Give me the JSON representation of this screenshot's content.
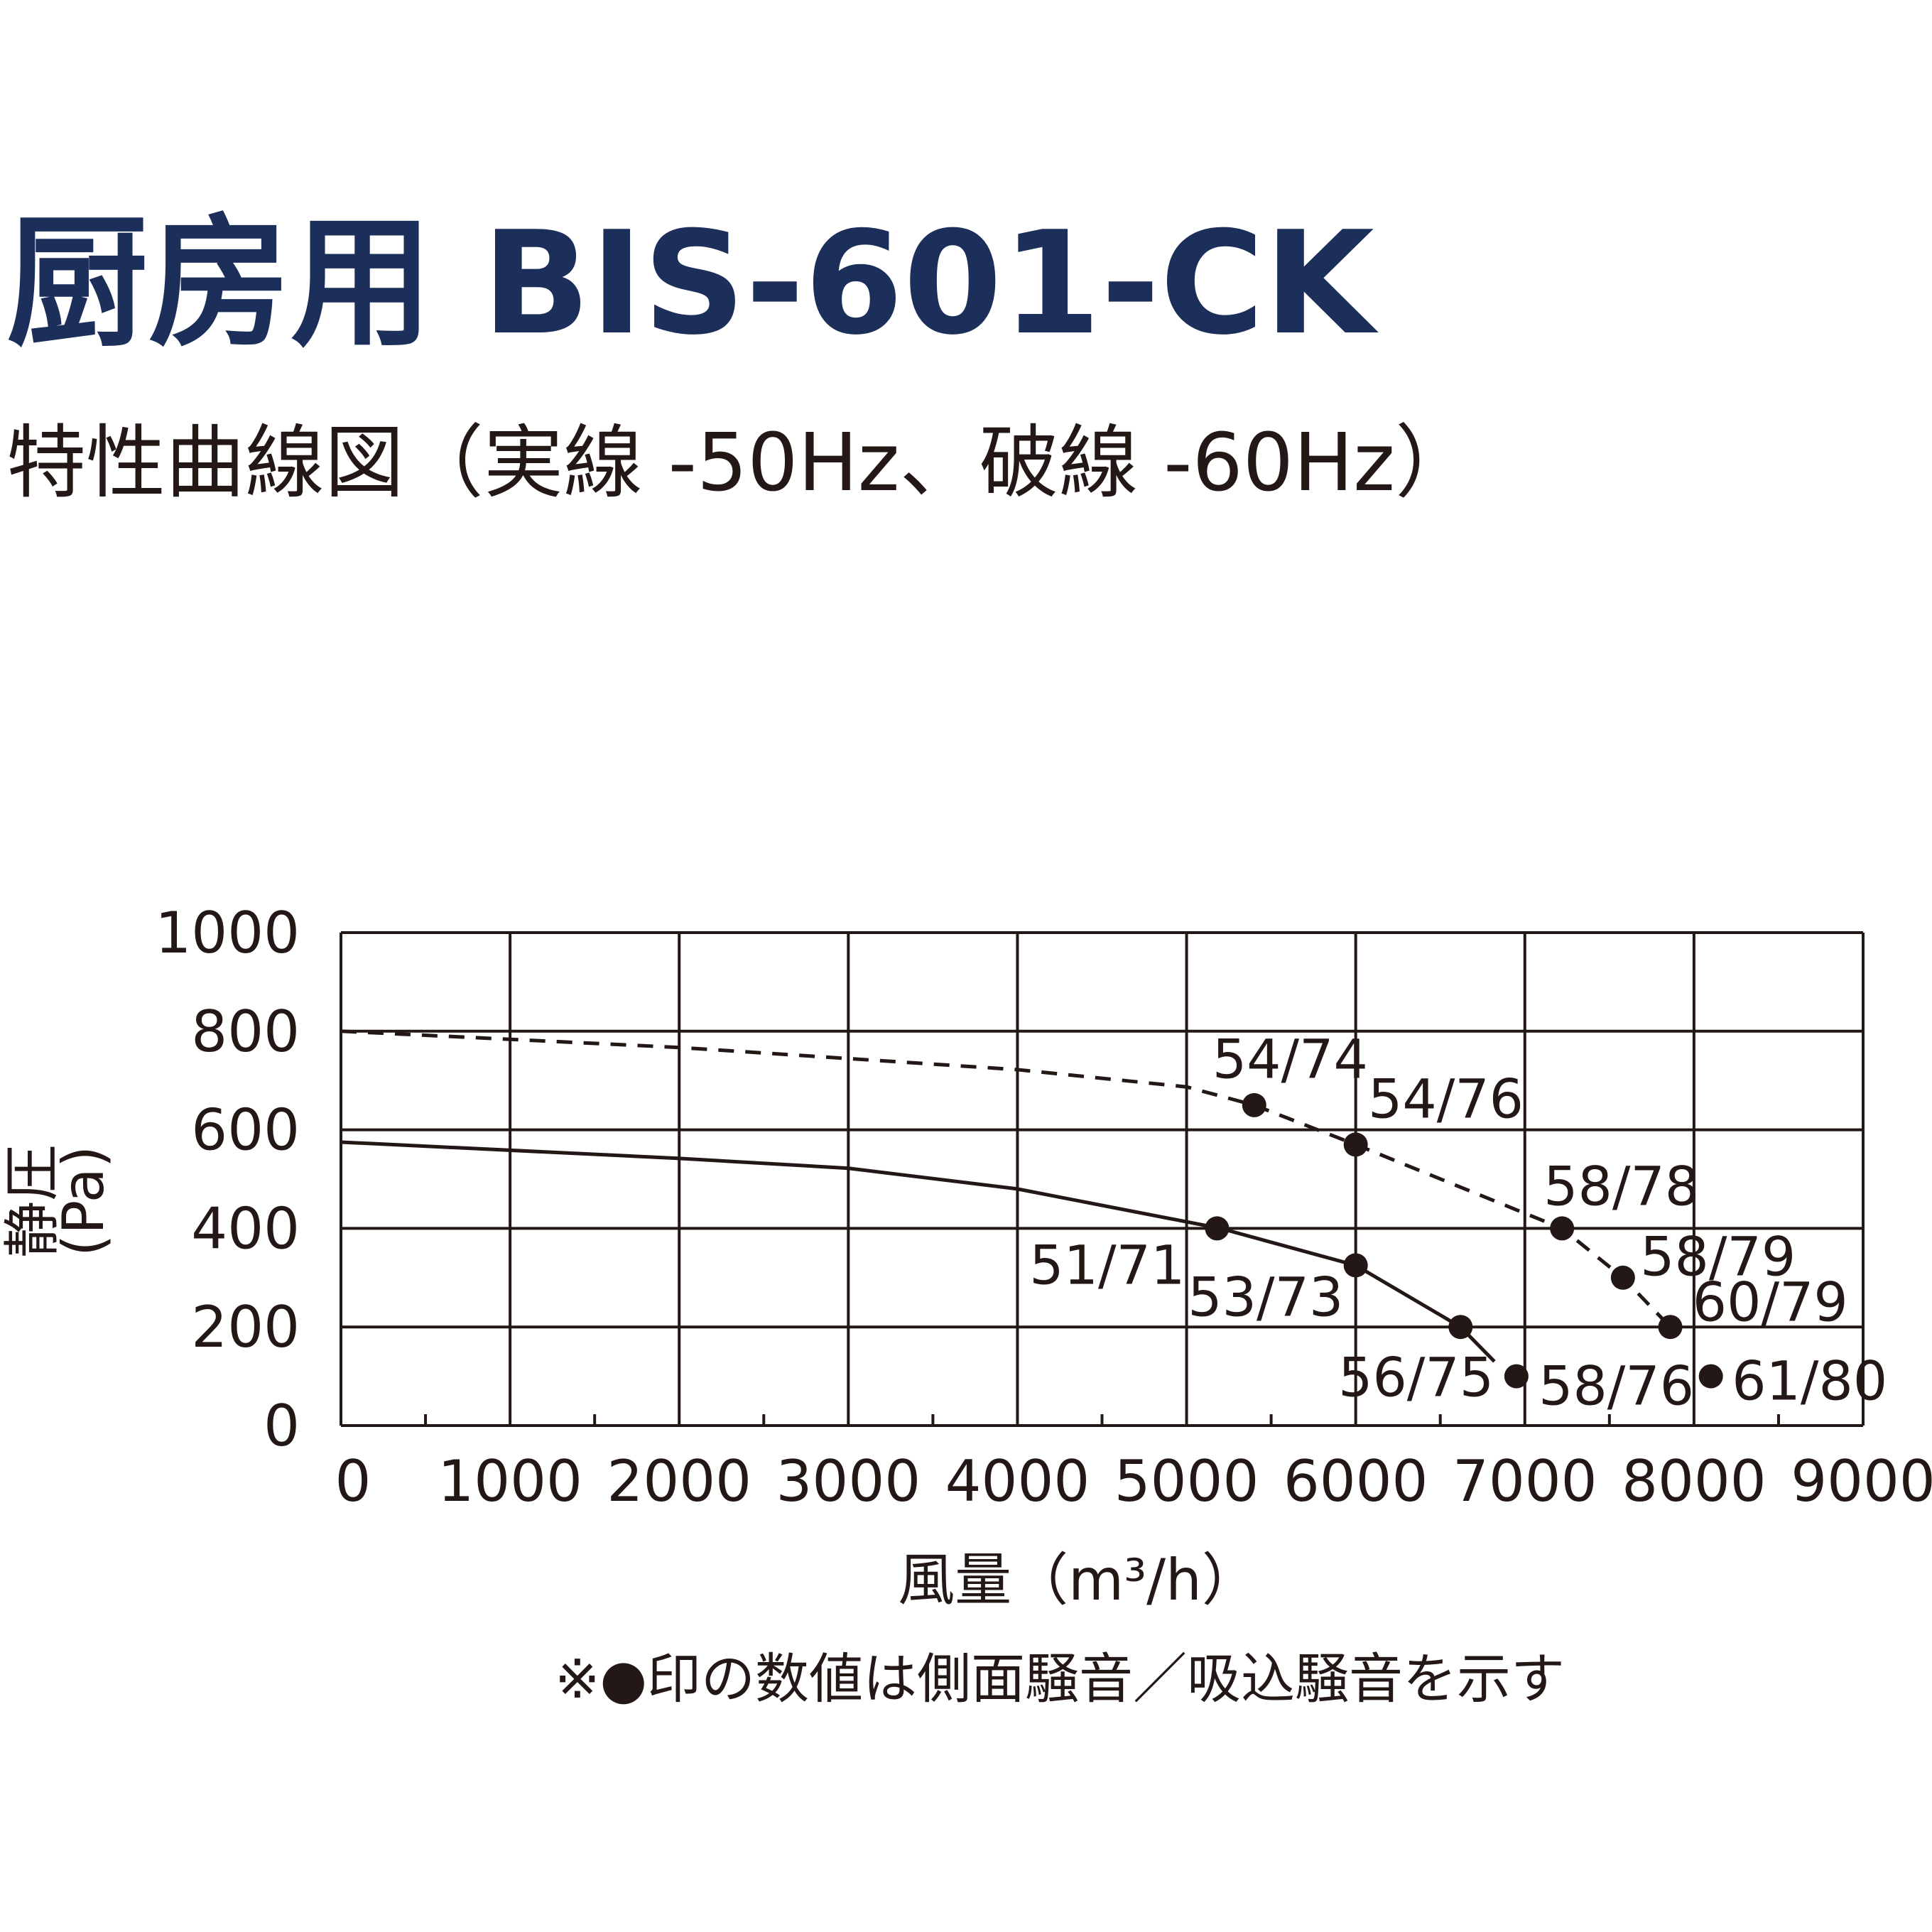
{
  "chart_data": {
    "type": "line",
    "title": "厨房用 BIS-601-CK",
    "subtitle": "特性曲線図（実線 -50Hz、破線 -60Hz）",
    "ylabel": [
      "静圧",
      "(Pa)"
    ],
    "xlabel": "風量（m³/h）",
    "note": "※●印の数値は側面騒音／吸込騒音を示す",
    "xlim": [
      0,
      9000
    ],
    "ylim": [
      0,
      1000
    ],
    "xticks": [
      0,
      1000,
      2000,
      3000,
      4000,
      5000,
      6000,
      7000,
      8000,
      9000
    ],
    "xminorticks": [
      500,
      1500,
      2500,
      3500,
      4500,
      5500,
      6500,
      7500,
      8500
    ],
    "yticks": [
      0,
      200,
      400,
      600,
      800,
      1000
    ],
    "grid": true,
    "series": [
      {
        "line_style": "solid",
        "color": "#231815",
        "x": [
          0,
          2000,
          3000,
          4000,
          5200,
          6000,
          6620,
          6820
        ],
        "values": [
          575,
          542,
          522,
          480,
          400,
          325,
          200,
          130
        ]
      },
      {
        "line_style": "dashed",
        "color": "#231815",
        "x": [
          0,
          2000,
          4000,
          5000,
          5400,
          6000,
          7220,
          7580,
          7860
        ],
        "values": [
          800,
          767,
          722,
          687,
          650,
          570,
          400,
          300,
          200
        ]
      }
    ],
    "points": {
      "color": "#231815",
      "x": [
        5180,
        6000,
        6620,
        6950,
        5400,
        6000,
        7220,
        7580,
        7860,
        8100
      ],
      "values": [
        400,
        325,
        200,
        100,
        650,
        570,
        400,
        300,
        200,
        100
      ],
      "value_labels": [
        "51/71",
        "53/73",
        "56/75",
        "58/76",
        "54/74",
        "54/76",
        "58/78",
        "58/79",
        "60/79",
        "61/80"
      ]
    }
  }
}
